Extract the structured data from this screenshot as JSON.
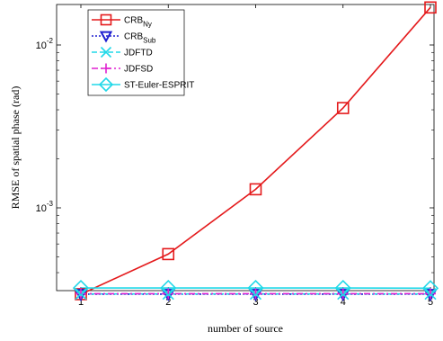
{
  "chart_data": {
    "type": "line",
    "xlabel": "number of source",
    "ylabel": "RMSE of spatial phase (rad)",
    "yscale": "log",
    "xlim": [
      1,
      5
    ],
    "ylim": [
      0.00028,
      0.018
    ],
    "x": [
      1,
      2,
      3,
      4,
      5
    ],
    "x_tick_labels": [
      "1",
      "2",
      "3",
      "4",
      "5"
    ],
    "y_ticks": [
      {
        "value": 0.01,
        "base": "10",
        "exp": "-2"
      },
      {
        "value": 0.001,
        "base": "10",
        "exp": "-3"
      }
    ],
    "grid": false,
    "legend_position": "top-left",
    "series": [
      {
        "name": "CRB",
        "subscript": "Ny",
        "color": "#e41a1c",
        "marker": "square",
        "line": "solid",
        "values": [
          0.000295,
          0.00052,
          0.0013,
          0.0041,
          0.017
        ]
      },
      {
        "name": "CRB",
        "subscript": "Sub",
        "color": "#1f1fd0",
        "marker": "triangle-down",
        "line": "dotted",
        "values": [
          0.000295,
          0.000295,
          0.000295,
          0.000295,
          0.000295
        ]
      },
      {
        "name": "JDFTD",
        "subscript": "",
        "color": "#20d8e8",
        "marker": "x",
        "line": "dashed",
        "values": [
          0.000296,
          0.000296,
          0.000296,
          0.000296,
          0.000296
        ]
      },
      {
        "name": "JDFSD",
        "subscript": "",
        "color": "#e020d0",
        "marker": "plus",
        "line": "dashdot",
        "values": [
          0.000297,
          0.000297,
          0.000297,
          0.000297,
          0.000297
        ]
      },
      {
        "name": "ST-Euler-ESPRIT",
        "subscript": "",
        "color": "#20d8e8",
        "marker": "diamond",
        "line": "solid",
        "values": [
          0.000322,
          0.000322,
          0.000322,
          0.000322,
          0.000321
        ]
      }
    ]
  }
}
